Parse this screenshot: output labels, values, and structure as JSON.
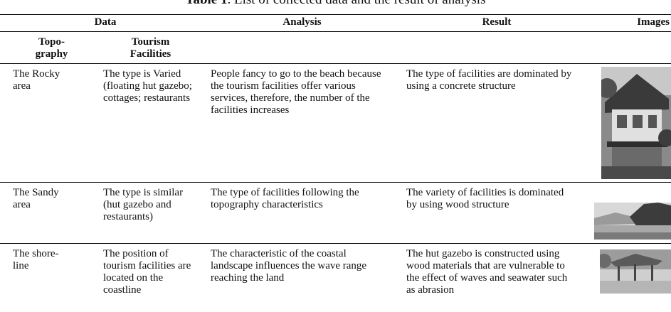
{
  "caption": {
    "label": "Table 1",
    "text": ". List of collected data and the result of analysis"
  },
  "table": {
    "header": [
      "Data",
      "Analysis",
      "Result",
      "Images"
    ],
    "subheader": [
      "Topo-\ngraphy",
      "Tourism\nFacilities"
    ],
    "rows": [
      [
        "The Rocky\narea",
        "The type is Varied (floating hut gazebo; cottages; restaurants",
        "People fancy to go to the beach because the tourism facilities offer various services, therefore, the number of the facilities increases",
        "The type of facilities are dominated by using a concrete structure"
      ],
      [
        "The Sandy\narea",
        "The type is similar (hut gazebo and restaurants)",
        "The type of facilities following the topography characteristics",
        "The variety of facilities is dominated by using wood structure"
      ],
      [
        "The shore-\nline",
        "The position of tourism facilities are located on the coastline",
        "The characteristic of the coastal landscape influences the wave range reaching the land",
        "The hut gazebo is constructed using wood materials that are vulnerable to the effect of waves and seawater such as abrasion"
      ]
    ]
  }
}
